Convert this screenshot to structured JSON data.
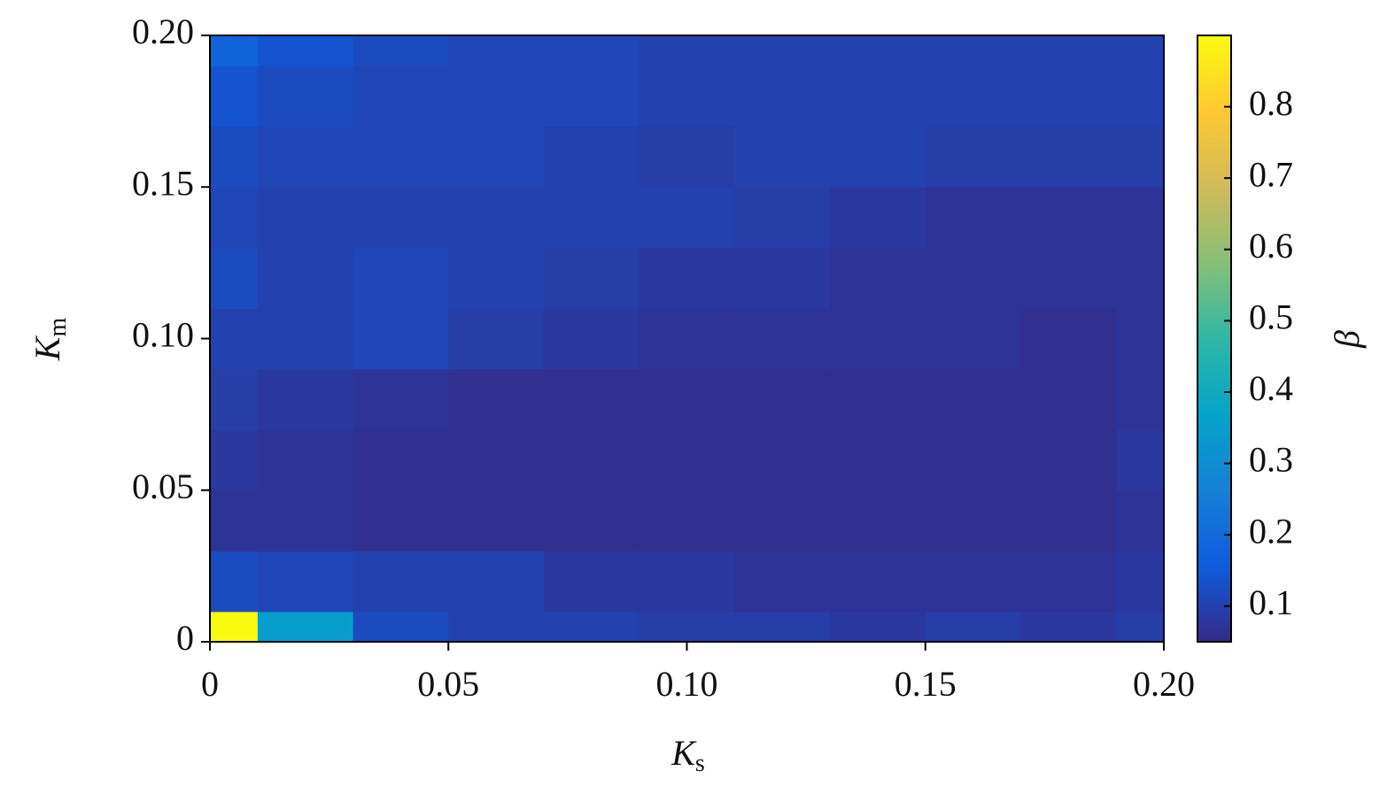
{
  "chart_data": {
    "type": "contour",
    "xlabel": "K",
    "xlabel_sub": "s",
    "ylabel": "K",
    "ylabel_sub": "m",
    "colorbar_label": "β",
    "x": [
      0,
      0.02,
      0.04,
      0.06,
      0.08,
      0.1,
      0.12,
      0.14,
      0.16,
      0.18,
      0.2
    ],
    "y": [
      0,
      0.02,
      0.04,
      0.06,
      0.08,
      0.1,
      0.12,
      0.14,
      0.16,
      0.18,
      0.2
    ],
    "z": [
      [
        0.9,
        0.35,
        0.12,
        0.1,
        0.1,
        0.09,
        0.09,
        0.08,
        0.09,
        0.08,
        0.09
      ],
      [
        0.12,
        0.11,
        0.1,
        0.1,
        0.08,
        0.08,
        0.07,
        0.07,
        0.07,
        0.07,
        0.08
      ],
      [
        0.07,
        0.07,
        0.06,
        0.06,
        0.06,
        0.06,
        0.06,
        0.06,
        0.06,
        0.06,
        0.07
      ],
      [
        0.08,
        0.07,
        0.06,
        0.06,
        0.06,
        0.06,
        0.06,
        0.06,
        0.06,
        0.06,
        0.08
      ],
      [
        0.09,
        0.08,
        0.07,
        0.06,
        0.06,
        0.06,
        0.06,
        0.06,
        0.06,
        0.06,
        0.07
      ],
      [
        0.1,
        0.1,
        0.11,
        0.09,
        0.08,
        0.07,
        0.07,
        0.07,
        0.07,
        0.06,
        0.07
      ],
      [
        0.12,
        0.1,
        0.11,
        0.1,
        0.09,
        0.08,
        0.08,
        0.07,
        0.07,
        0.07,
        0.07
      ],
      [
        0.11,
        0.1,
        0.1,
        0.1,
        0.1,
        0.1,
        0.09,
        0.08,
        0.07,
        0.07,
        0.07
      ],
      [
        0.12,
        0.11,
        0.11,
        0.11,
        0.1,
        0.09,
        0.1,
        0.1,
        0.09,
        0.09,
        0.09
      ],
      [
        0.14,
        0.12,
        0.11,
        0.11,
        0.11,
        0.1,
        0.1,
        0.1,
        0.1,
        0.1,
        0.1
      ],
      [
        0.18,
        0.14,
        0.12,
        0.11,
        0.11,
        0.1,
        0.1,
        0.1,
        0.1,
        0.1,
        0.1
      ]
    ],
    "xlim": [
      0,
      0.2
    ],
    "ylim": [
      0,
      0.2
    ],
    "xticks": [
      0,
      0.05,
      {
        "value": 0.1,
        "label": "0.10"
      },
      0.15,
      {
        "value": 0.2,
        "label": "0.20"
      }
    ],
    "yticks": [
      0,
      0.05,
      {
        "value": 0.1,
        "label": "0.10"
      },
      0.15,
      {
        "value": 0.2,
        "label": "0.20"
      }
    ],
    "clim": [
      0.05,
      0.9
    ],
    "cticks": [
      0.1,
      0.2,
      0.3,
      0.4,
      0.5,
      0.6,
      0.7,
      0.8
    ],
    "colormap": [
      "#352a87",
      "#0f5cdd",
      "#1481d6",
      "#06a4ca",
      "#2eb7a4",
      "#87bf77",
      "#d1bb59",
      "#fec832",
      "#f9fb0e"
    ]
  }
}
